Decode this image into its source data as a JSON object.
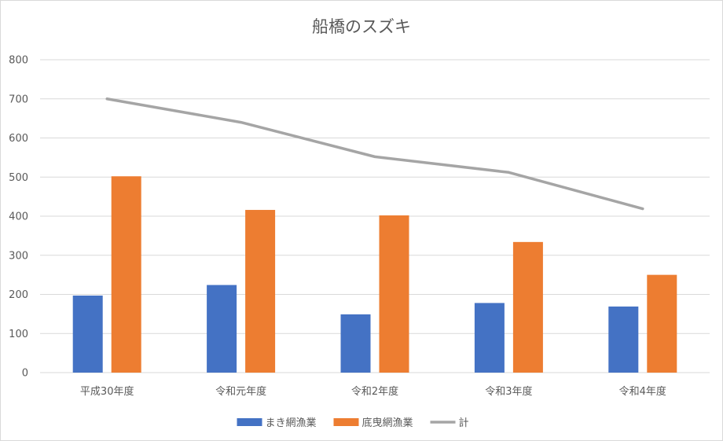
{
  "chart_data": {
    "type": "bar",
    "title": "船橋のスズキ",
    "xlabel": "",
    "ylabel": "",
    "categories": [
      "平成30年度",
      "令和元年度",
      "令和2年度",
      "令和3年度",
      "令和4年度"
    ],
    "series": [
      {
        "name": "まき網漁業",
        "type": "bar",
        "color": "#4472c4",
        "values": [
          197,
          224,
          149,
          178,
          169
        ]
      },
      {
        "name": "底曳網漁業",
        "type": "bar",
        "color": "#ed7d31",
        "values": [
          502,
          416,
          402,
          334,
          250
        ]
      },
      {
        "name": "計",
        "type": "line",
        "color": "#a5a5a5",
        "values": [
          700,
          640,
          552,
          512,
          419
        ]
      }
    ],
    "ylim": [
      0,
      800
    ],
    "yticks": [
      0,
      100,
      200,
      300,
      400,
      500,
      600,
      700,
      800
    ],
    "grid": true,
    "legend": "bottom"
  }
}
